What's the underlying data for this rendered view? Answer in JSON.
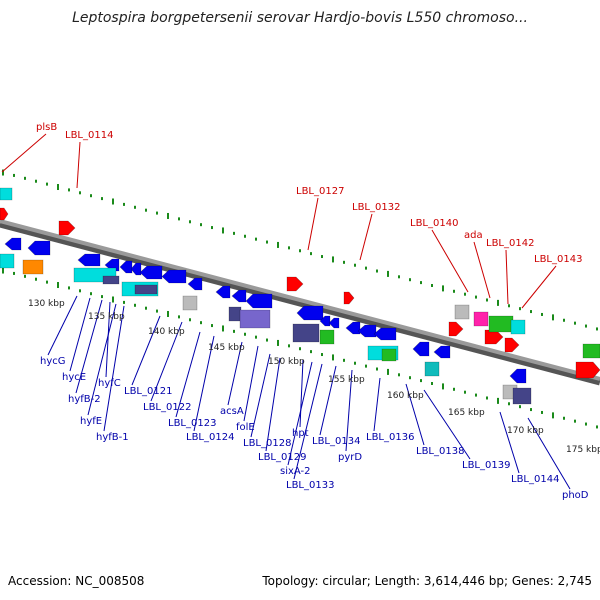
{
  "title": "Leptospira borgpetersenii serovar Hardjo-bovis L550 chromoso...",
  "footer": {
    "accession": "Accession: NC_008508",
    "topology": "Topology: circular; Length: 3,614,446 bp; Genes: 2,745"
  },
  "colors": {
    "backbone": "#8c8c8c",
    "tick": "#1a8a1a",
    "red_label": "#cc0000",
    "blue_label": "#0000aa",
    "blue": "#0000ee",
    "red": "#ff0000",
    "cyan": "#00dddd",
    "green": "#22bb22",
    "purple": "#444488",
    "gray": "#bbbbbb",
    "magenta": "#ff22aa",
    "orange": "#ff8800"
  },
  "ruler_labels": [
    "130 kbp",
    "135 kbp",
    "140 kbp",
    "145 kbp",
    "150 kbp",
    "155 kbp",
    "160 kbp",
    "165 kbp",
    "170 kbp",
    "175 kbp"
  ],
  "top_gene_labels": [
    "plsB",
    "LBL_0114",
    "LBL_0127",
    "LBL_0132",
    "LBL_0140",
    "ada",
    "LBL_0142",
    "LBL_0143"
  ],
  "bottom_gene_labels": [
    "hycG",
    "hycE",
    "hyfB-2",
    "hyfC",
    "hyfE",
    "hyfB-1",
    "LBL_0121",
    "LBL_0122",
    "LBL_0123",
    "LBL_0124",
    "acsA",
    "folE",
    "LBL_0128",
    "LBL_0129",
    "hpt",
    "sixA-2",
    "LBL_0133",
    "LBL_0134",
    "pyrD",
    "LBL_0136",
    "LBL_0138",
    "LBL_0139",
    "LBL_0144",
    "phoD"
  ]
}
